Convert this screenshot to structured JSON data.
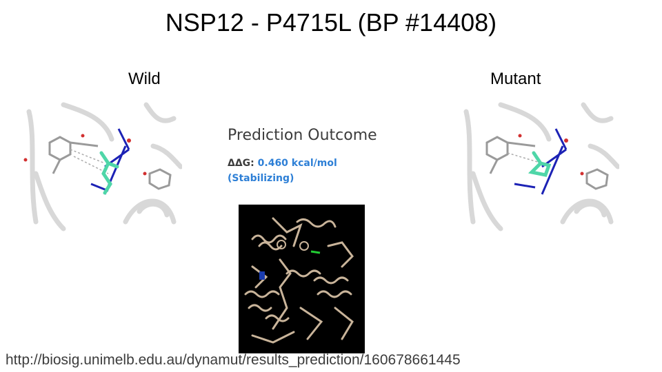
{
  "slide": {
    "title": "NSP12 - P4715L (BP #14408)",
    "wild_label": "Wild",
    "mutant_label": "Mutant",
    "prediction_title": "Prediction Outcome",
    "ddg_label": "ΔΔG:",
    "ddg_value": "0.460 kcal/mol",
    "ddg_class": "(Stabilizing)",
    "url": "http://biosig.unimelb.edu.au/dynamut/results_prediction/160678661445"
  },
  "colors": {
    "ddg_value": "#2d7fd6",
    "mutant_residue": "#4fd6a8",
    "protein_ribbon": "#c9b49a",
    "highlight_green": "#22cc33",
    "highlight_blue": "#1a3cb0"
  },
  "images": {
    "wild": "wild-structure-image",
    "mutant": "mutant-structure-image",
    "protein": "protein-structure-image"
  }
}
